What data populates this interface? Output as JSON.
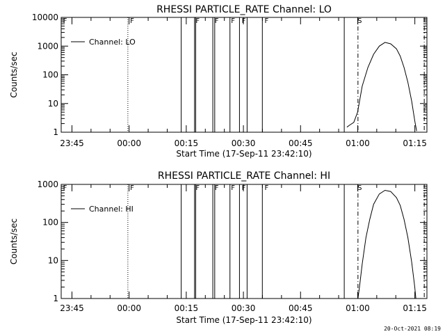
{
  "chart_data": [
    {
      "type": "line",
      "title": "RHESSI PARTICLE_RATE Channel: LO",
      "ylabel": "Counts/sec",
      "xlabel": "Start Time (17-Sep-11 23:42:10)",
      "yscale": "log",
      "ylim": [
        1,
        10000
      ],
      "xlim_minutes_from_start": [
        0,
        96
      ],
      "x_tick_labels": [
        "23:45",
        "00:00",
        "00:15",
        "00:30",
        "00:45",
        "01:00",
        "01:15"
      ],
      "x_tick_minutes": [
        2.83,
        17.83,
        32.83,
        47.83,
        62.83,
        77.83,
        92.83
      ],
      "y_tick_labels": [
        "1",
        "10",
        "100",
        "1000",
        "10000"
      ],
      "y_tick_values": [
        1,
        10,
        100,
        1000,
        10000
      ],
      "legend": "Channel: LO",
      "series": [
        {
          "name": "Channel: LO",
          "x_minutes": [
            75,
            75.8,
            76.8,
            77.8,
            79,
            80.5,
            82,
            83.5,
            85,
            86.5,
            88,
            89,
            90,
            91,
            92,
            92.8,
            93.3
          ],
          "y": [
            1.5,
            1.8,
            2.2,
            5,
            40,
            180,
            520,
            1000,
            1350,
            1200,
            800,
            450,
            180,
            55,
            12,
            2.5,
            1.1
          ]
        }
      ],
      "solid_event_lines_minutes": [
        31.5,
        35,
        35.3,
        39.8,
        40.3,
        44.3,
        46.8,
        48.8,
        52.8,
        74.3
      ],
      "flags": [
        {
          "label": "F",
          "minute": 0.3
        },
        {
          "label": "F",
          "minute": 17.9
        },
        {
          "label": "F",
          "minute": 35.1
        },
        {
          "label": "F",
          "minute": 40.1
        },
        {
          "label": "F",
          "minute": 44.4
        },
        {
          "label": "F",
          "minute": 47.2
        },
        {
          "label": "F",
          "minute": 53.2
        },
        {
          "label": "S",
          "minute": 77.6
        }
      ],
      "dotted_lines_minutes": [
        17.5
      ],
      "dashdot_lines_minutes": [
        77.9,
        95.3
      ]
    },
    {
      "type": "line",
      "title": "RHESSI PARTICLE_RATE Channel: HI",
      "ylabel": "Counts/sec",
      "xlabel": "Start Time (17-Sep-11 23:42:10)",
      "yscale": "log",
      "ylim": [
        1,
        1000
      ],
      "xlim_minutes_from_start": [
        0,
        96
      ],
      "x_tick_labels": [
        "23:45",
        "00:00",
        "00:15",
        "00:30",
        "00:45",
        "01:00",
        "01:15"
      ],
      "x_tick_minutes": [
        2.83,
        17.83,
        32.83,
        47.83,
        62.83,
        77.83,
        92.83
      ],
      "y_tick_labels": [
        "1",
        "10",
        "100",
        "1000"
      ],
      "y_tick_values": [
        1,
        10,
        100,
        1000
      ],
      "legend": "Channel: HI",
      "series": [
        {
          "name": "Channel: HI",
          "x_minutes": [
            77.9,
            78.3,
            79,
            80,
            81,
            82,
            83.5,
            85,
            86.5,
            88,
            89,
            90,
            91,
            92,
            92.8,
            93.1
          ],
          "y": [
            1,
            2,
            8,
            40,
            120,
            300,
            560,
            700,
            650,
            450,
            280,
            120,
            40,
            9,
            2,
            1
          ]
        }
      ],
      "solid_event_lines_minutes": [
        31.5,
        35,
        35.3,
        39.8,
        40.3,
        44.3,
        46.8,
        48.8,
        52.8,
        74.3
      ],
      "flags": [
        {
          "label": "F",
          "minute": 0.3
        },
        {
          "label": "F",
          "minute": 17.9
        },
        {
          "label": "F",
          "minute": 35.1
        },
        {
          "label": "F",
          "minute": 40.1
        },
        {
          "label": "F",
          "minute": 44.4
        },
        {
          "label": "F",
          "minute": 47.2
        },
        {
          "label": "F",
          "minute": 53.2
        },
        {
          "label": "S",
          "minute": 77.6
        }
      ],
      "dotted_lines_minutes": [
        17.5
      ],
      "dashdot_lines_minutes": [
        77.9,
        95.3
      ]
    }
  ],
  "timestamp": "20-Oct-2021 08:19"
}
